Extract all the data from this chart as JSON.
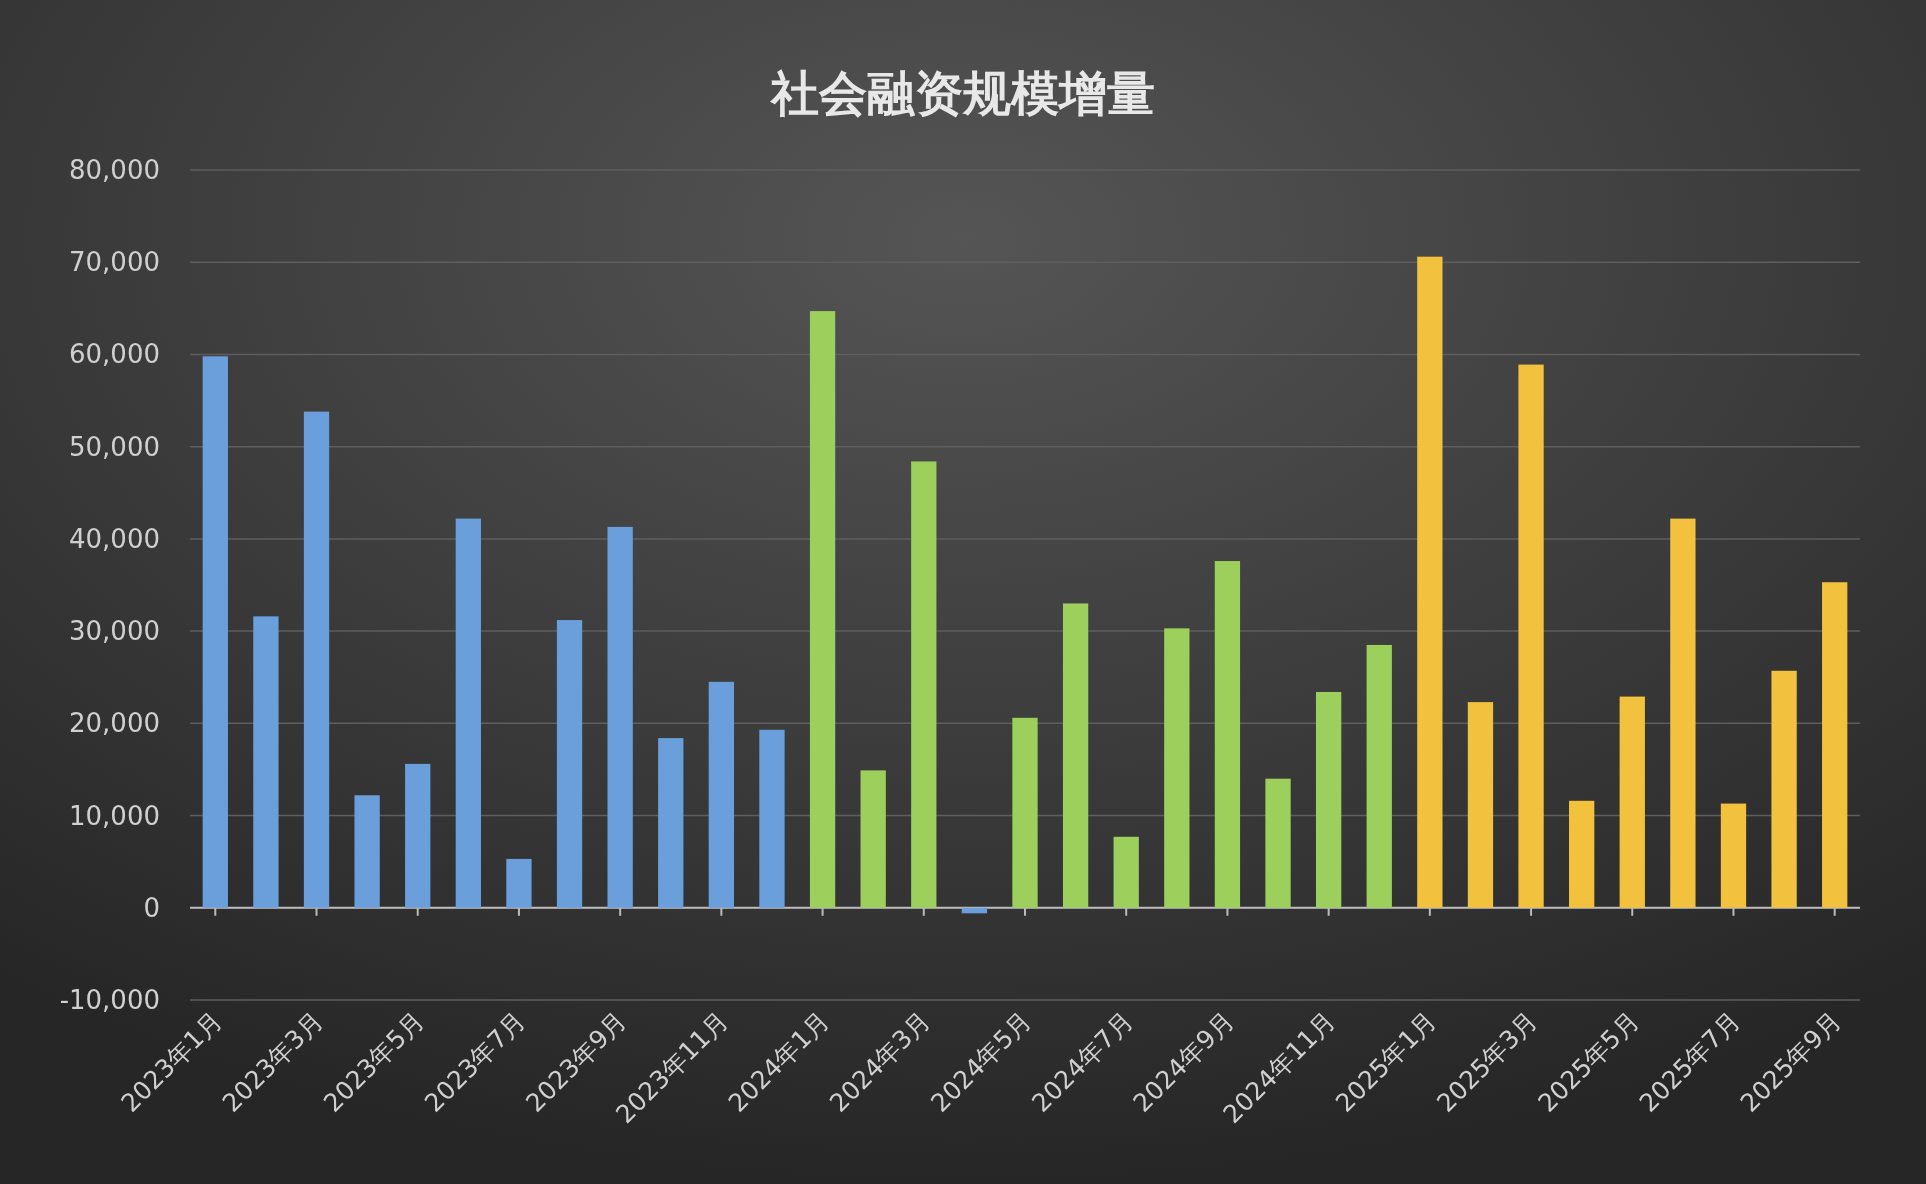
{
  "chart_data": {
    "type": "bar",
    "title": "社会融资规模增量",
    "categories": [
      "2023年1月",
      null,
      "2023年3月",
      null,
      "2023年5月",
      null,
      "2023年7月",
      null,
      "2023年9月",
      null,
      "2023年11月",
      null,
      "2024年1月",
      null,
      "2024年3月",
      null,
      "2024年5月",
      null,
      "2024年7月",
      null,
      "2024年9月",
      null,
      "2024年11月",
      null,
      "2025年1月",
      null,
      "2025年3月",
      null,
      "2025年5月",
      null,
      "2025年7月",
      null,
      "2025年9月"
    ],
    "values": [
      59800,
      31600,
      53800,
      12200,
      15600,
      42200,
      5300,
      31200,
      41300,
      18400,
      24500,
      19300,
      64700,
      14900,
      48400,
      -600,
      20600,
      33000,
      7700,
      30300,
      37600,
      14000,
      23400,
      28500,
      70600,
      22300,
      58900,
      11600,
      22900,
      42200,
      11300,
      25700,
      35300
    ],
    "colors": [
      "#6a9fdc",
      "#6a9fdc",
      "#6a9fdc",
      "#6a9fdc",
      "#6a9fdc",
      "#6a9fdc",
      "#6a9fdc",
      "#6a9fdc",
      "#6a9fdc",
      "#6a9fdc",
      "#6a9fdc",
      "#6a9fdc",
      "#9ccf5c",
      "#9ccf5c",
      "#9ccf5c",
      "#6a9fdc",
      "#9ccf5c",
      "#9ccf5c",
      "#9ccf5c",
      "#9ccf5c",
      "#9ccf5c",
      "#9ccf5c",
      "#9ccf5c",
      "#9ccf5c",
      "#f2c23e",
      "#f2c23e",
      "#f2c23e",
      "#f2c23e",
      "#f2c23e",
      "#f2c23e",
      "#f2c23e",
      "#f2c23e",
      "#f2c23e"
    ],
    "ylim": [
      -10000,
      80000
    ],
    "yticks": [
      {
        "value": -10000,
        "label": "-10,000"
      },
      0,
      {
        "value": 10000,
        "label": "10,000"
      },
      {
        "value": 20000,
        "label": "20,000"
      },
      {
        "value": 30000,
        "label": "30,000"
      },
      {
        "value": 40000,
        "label": "40,000"
      },
      {
        "value": 50000,
        "label": "50,000"
      },
      {
        "value": 60000,
        "label": "60,000"
      },
      {
        "value": 70000,
        "label": "70,000"
      },
      {
        "value": 80000,
        "label": "80,000"
      }
    ],
    "grid": "y"
  }
}
